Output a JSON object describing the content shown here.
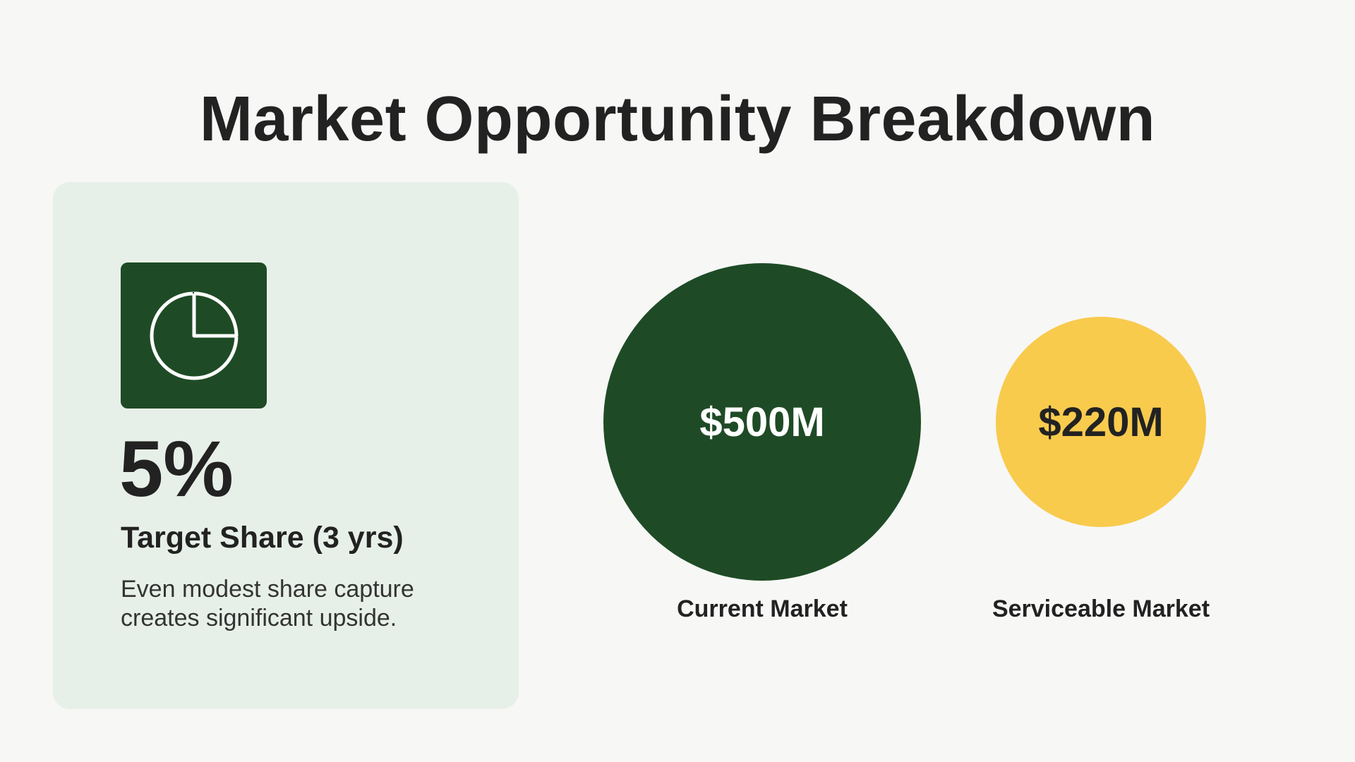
{
  "title": "Market Opportunity Breakdown",
  "share_card": {
    "icon": "pie-chart-icon",
    "value": "5%",
    "label": "Target Share (3 yrs)",
    "description": "Even modest share capture creates significant upside.",
    "background_color": "#e7f0e8"
  },
  "markets": [
    {
      "value": "$500M",
      "label": "Current Market",
      "color": "#1e4b25"
    },
    {
      "value": "$220M",
      "label": "Serviceable Market",
      "color": "#f8cb4d"
    }
  ],
  "colors": {
    "background": "#f7f7f6",
    "accent_dark_green": "#1e4b25",
    "accent_yellow": "#f8cb4d",
    "text": "#222222"
  }
}
